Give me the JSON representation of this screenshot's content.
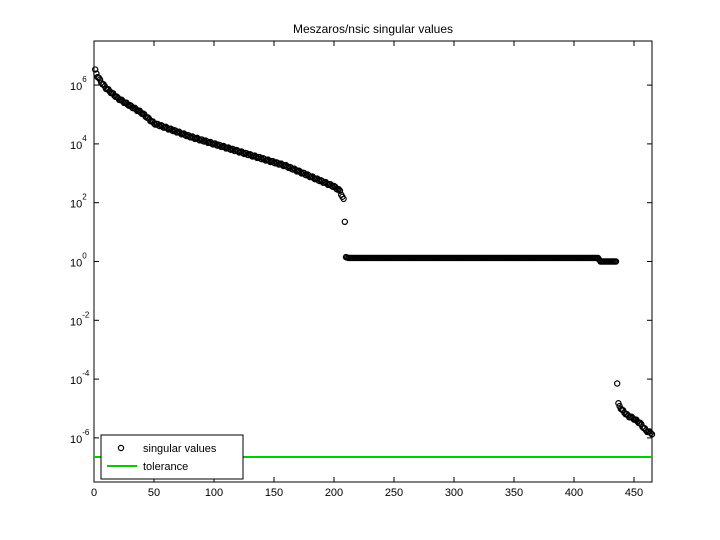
{
  "chart_data": {
    "type": "scatter",
    "title": "Meszaros/nsic singular values",
    "xlabel": "",
    "ylabel": "",
    "xlim": [
      0,
      465
    ],
    "ylim_log10": [
      -7.5,
      7.5
    ],
    "y_scale": "log",
    "x_ticks": [
      "0",
      "50",
      "100",
      "150",
      "200",
      "250",
      "300",
      "350",
      "400",
      "450"
    ],
    "x_tick_values": [
      0,
      50,
      100,
      150,
      200,
      250,
      300,
      350,
      400,
      450
    ],
    "y_ticks": [
      {
        "base": "10",
        "exp": "6",
        "log10": 6
      },
      {
        "base": "10",
        "exp": "4",
        "log10": 4
      },
      {
        "base": "10",
        "exp": "2",
        "log10": 2
      },
      {
        "base": "10",
        "exp": "0",
        "log10": 0
      },
      {
        "base": "10",
        "exp": "-2",
        "log10": -2
      },
      {
        "base": "10",
        "exp": "-4",
        "log10": -4
      },
      {
        "base": "10",
        "exp": "-6",
        "log10": -6
      }
    ],
    "grid": false,
    "legend_position": "bottom-left",
    "series": [
      {
        "name": "singular values",
        "marker": "circle",
        "color": "#000000",
        "log10_profile": [
          [
            1,
            6.5
          ],
          [
            3,
            6.3
          ],
          [
            6,
            6.1
          ],
          [
            10,
            5.9
          ],
          [
            20,
            5.55
          ],
          [
            30,
            5.3
          ],
          [
            40,
            5.05
          ],
          [
            50,
            4.7
          ],
          [
            60,
            4.55
          ],
          [
            70,
            4.4
          ],
          [
            80,
            4.25
          ],
          [
            100,
            4.0
          ],
          [
            120,
            3.75
          ],
          [
            140,
            3.5
          ],
          [
            160,
            3.25
          ],
          [
            180,
            2.9
          ],
          [
            200,
            2.55
          ],
          [
            205,
            2.4
          ],
          [
            208,
            2.1
          ],
          [
            209,
            1.35
          ],
          [
            210,
            0.15
          ],
          [
            212,
            0.12
          ],
          [
            420,
            0.12
          ],
          [
            422,
            0.0
          ],
          [
            435,
            0.0
          ],
          [
            436,
            -4.15
          ],
          [
            437,
            -4.85
          ],
          [
            440,
            -5.05
          ],
          [
            445,
            -5.25
          ],
          [
            450,
            -5.35
          ],
          [
            455,
            -5.5
          ],
          [
            460,
            -5.75
          ],
          [
            465,
            -5.85
          ]
        ]
      },
      {
        "name": "tolerance",
        "type": "line",
        "color": "#00cc00",
        "log10_value": -6.65
      }
    ]
  }
}
